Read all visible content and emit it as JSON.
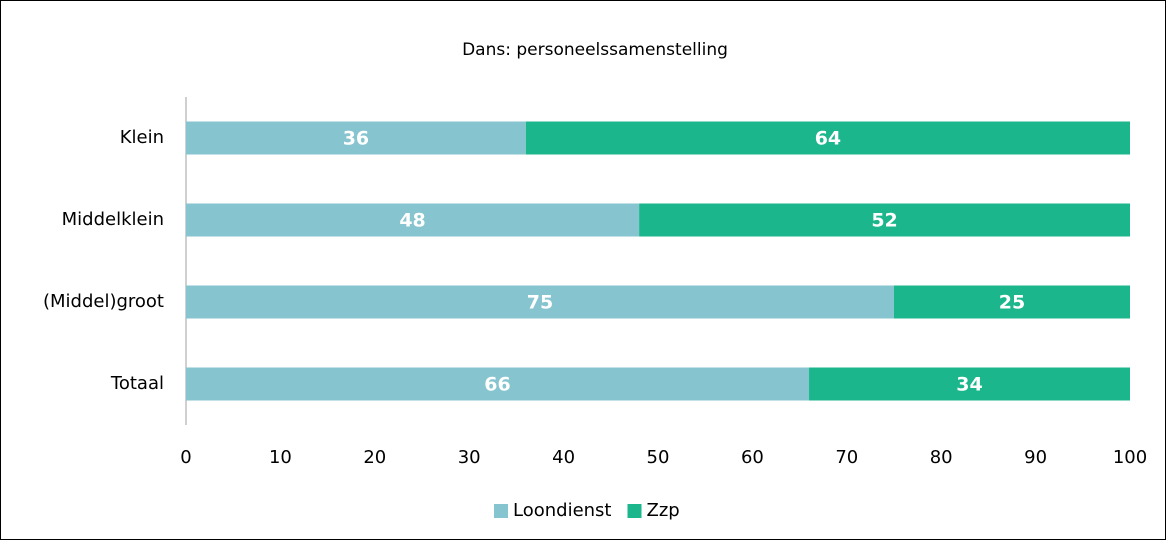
{
  "chart_data": {
    "type": "stacked_bar_horizontal",
    "title": "Dans: personeelssamenstelling",
    "categories": [
      "Klein",
      "Middelklein",
      "(Middel)groot",
      "Totaal"
    ],
    "series": [
      {
        "name": "Loondienst",
        "color": "#86c4cf",
        "values": [
          36,
          48,
          75,
          66
        ]
      },
      {
        "name": "Zzp",
        "color": "#1bb68c",
        "values": [
          64,
          52,
          25,
          34
        ]
      }
    ],
    "xlim": [
      0,
      100
    ],
    "xticks": [
      0,
      10,
      20,
      30,
      40,
      50,
      60,
      70,
      80,
      90,
      100
    ],
    "legend": "bottom"
  }
}
